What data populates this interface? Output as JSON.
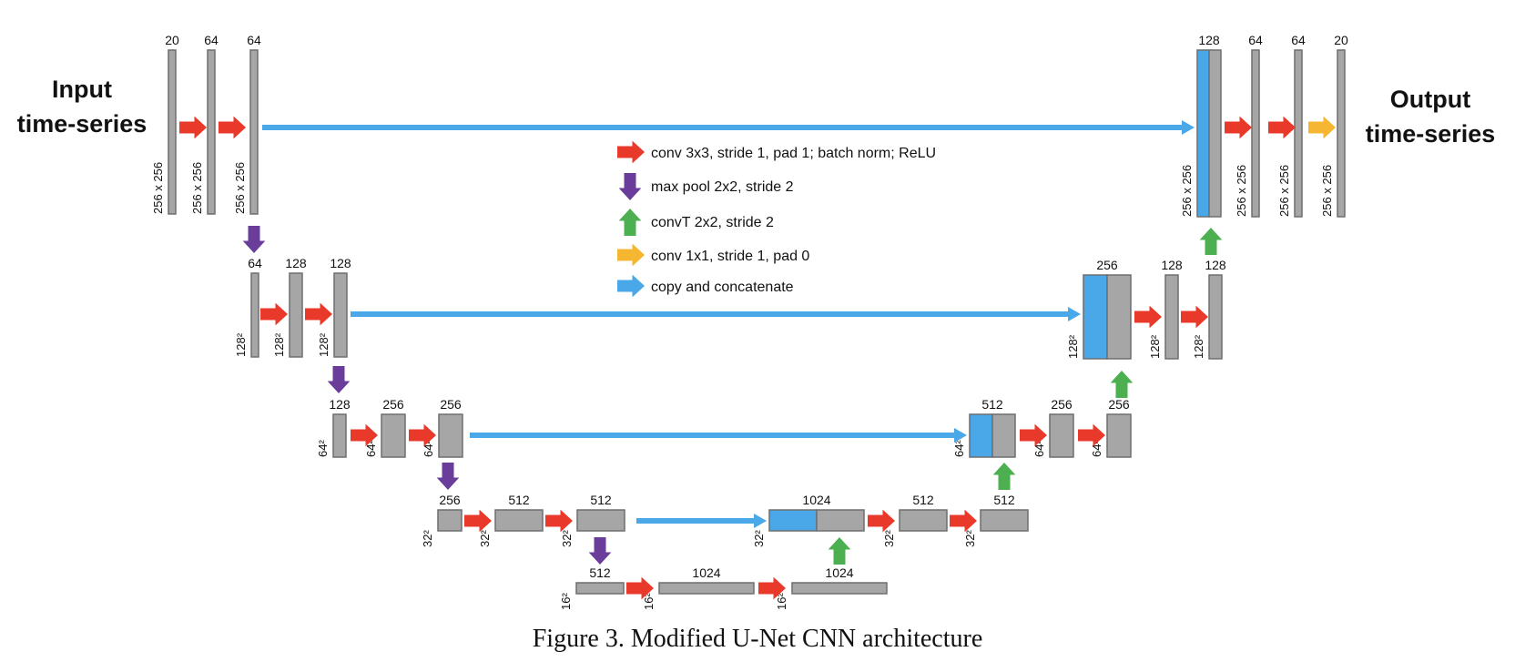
{
  "input_label": [
    "Input",
    "time-series"
  ],
  "output_label": [
    "Output",
    "time-series"
  ],
  "caption": "Figure 3. Modified U-Net CNN architecture",
  "legend": [
    {
      "label": "conv 3x3, stride 1, pad 1; batch norm; ReLU",
      "color": "#e8392b",
      "icon": "right-arrow-icon"
    },
    {
      "label": "max pool 2x2, stride 2",
      "color": "#6a3d9a",
      "icon": "down-arrow-icon"
    },
    {
      "label": "convT 2x2, stride 2",
      "color": "#4caf50",
      "icon": "up-arrow-icon"
    },
    {
      "label": "conv 1x1, stride 1, pad 0",
      "color": "#f5b731",
      "icon": "right-arrow-icon"
    },
    {
      "label": "copy and concatenate",
      "color": "#4aa8e8",
      "icon": "right-arrow-icon"
    }
  ],
  "colors": {
    "block": "#a6a6a6",
    "block_border": "#6e6e6e",
    "concat": "#4aa8e8"
  },
  "blocks": [
    {
      "id": "e1a",
      "channels": "20",
      "size": "256 x 256"
    },
    {
      "id": "e1b",
      "channels": "64",
      "size": "256 x 256"
    },
    {
      "id": "e1c",
      "channels": "64",
      "size": "256 x 256"
    },
    {
      "id": "e2a",
      "channels": "64",
      "size": "128²"
    },
    {
      "id": "e2b",
      "channels": "128",
      "size": "128²"
    },
    {
      "id": "e2c",
      "channels": "128",
      "size": "128²"
    },
    {
      "id": "e3a",
      "channels": "128",
      "size": "64²"
    },
    {
      "id": "e3b",
      "channels": "256",
      "size": "64²"
    },
    {
      "id": "e3c",
      "channels": "256",
      "size": "64²"
    },
    {
      "id": "e4a",
      "channels": "256",
      "size": "32²"
    },
    {
      "id": "e4b",
      "channels": "512",
      "size": "32²"
    },
    {
      "id": "e4c",
      "channels": "512",
      "size": "32²"
    },
    {
      "id": "b1",
      "channels": "512",
      "size": "16²"
    },
    {
      "id": "b2",
      "channels": "1024",
      "size": "16²"
    },
    {
      "id": "b3",
      "channels": "1024",
      "size": "16²"
    },
    {
      "id": "d4a",
      "channels": "1024",
      "size": "32²",
      "concat": true
    },
    {
      "id": "d4b",
      "channels": "512",
      "size": "32²"
    },
    {
      "id": "d4c",
      "channels": "512",
      "size": "32²"
    },
    {
      "id": "d3a",
      "channels": "512",
      "size": "64²",
      "concat": true
    },
    {
      "id": "d3b",
      "channels": "256",
      "size": "64²"
    },
    {
      "id": "d3c",
      "channels": "256",
      "size": "64²"
    },
    {
      "id": "d2a",
      "channels": "256",
      "size": "128²",
      "concat": true
    },
    {
      "id": "d2b",
      "channels": "128",
      "size": "128²"
    },
    {
      "id": "d2c",
      "channels": "128",
      "size": "128²"
    },
    {
      "id": "d1a",
      "channels": "128",
      "size": "256 x 256",
      "concat": true
    },
    {
      "id": "d1b",
      "channels": "64",
      "size": "256 x 256"
    },
    {
      "id": "d1c",
      "channels": "64",
      "size": "256 x 256"
    },
    {
      "id": "out",
      "channels": "20",
      "size": "256 x 256"
    }
  ]
}
